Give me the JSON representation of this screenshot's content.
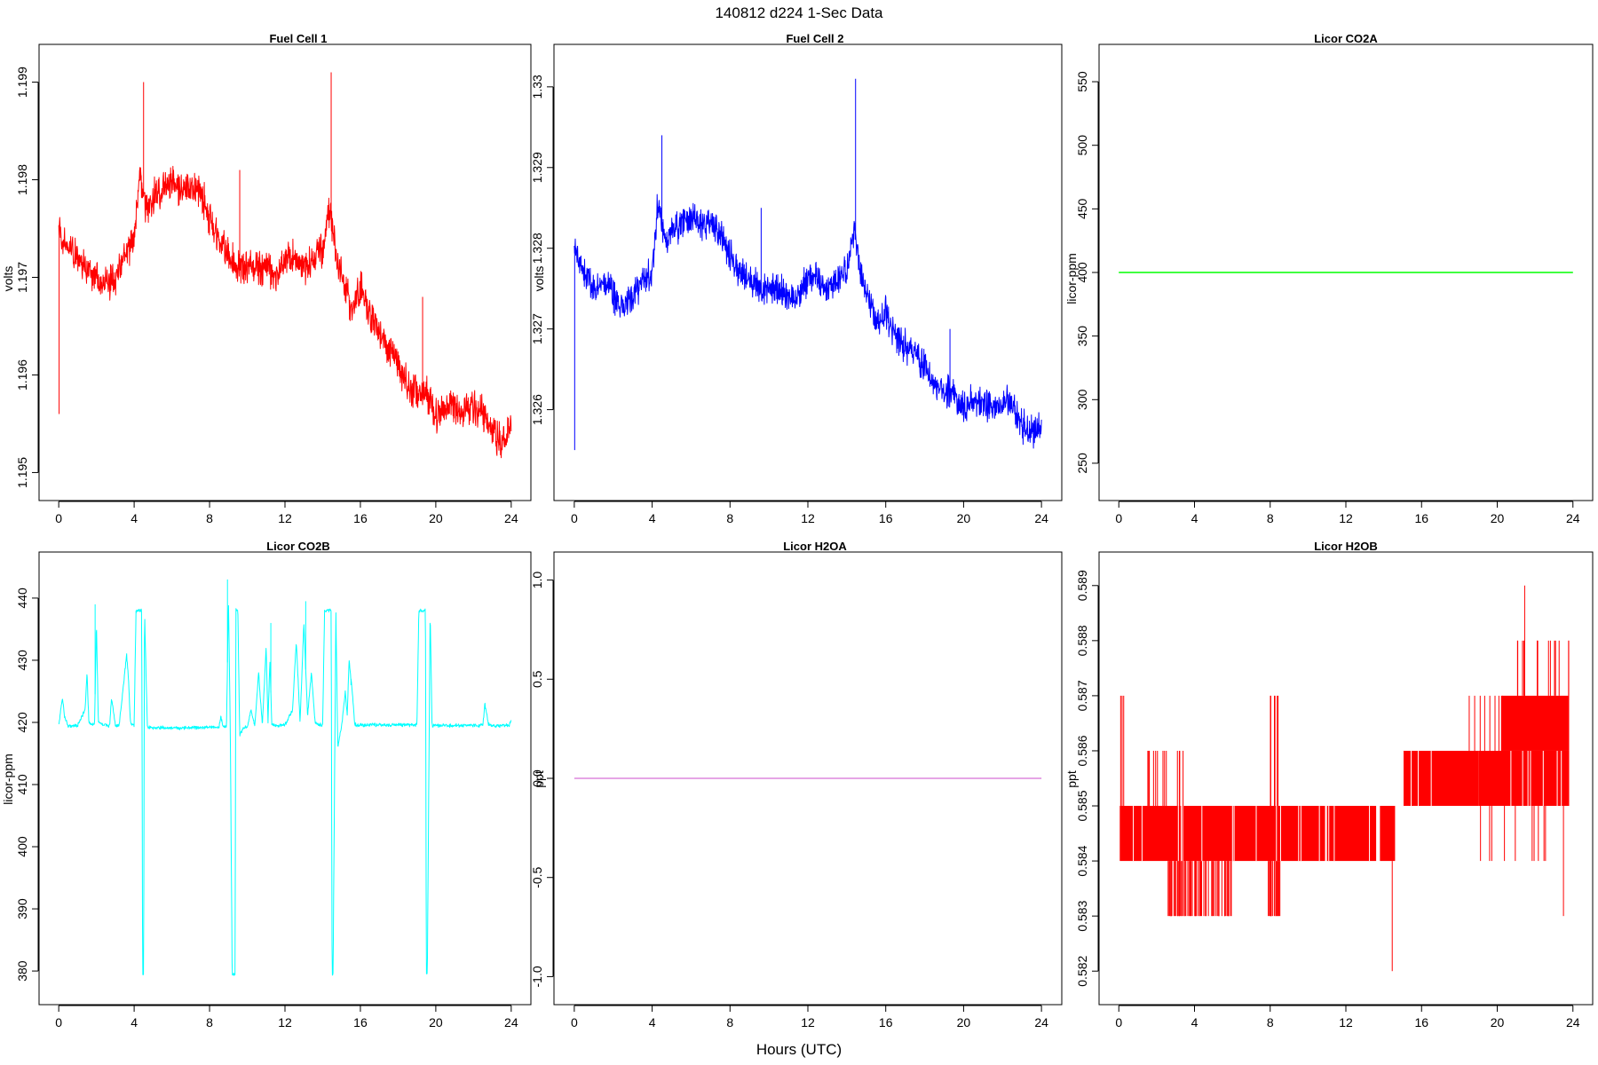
{
  "figure": {
    "title": "140812   d224   1-Sec Data",
    "xlabel": "Hours (UTC)"
  },
  "chart_data": [
    {
      "type": "line",
      "title": "Fuel Cell 1",
      "ylabel": "volts",
      "color": "#ff0000",
      "xlim": [
        0,
        24
      ],
      "ylim": [
        1.1949,
        1.1992
      ],
      "xticks": [
        0,
        4,
        8,
        12,
        16,
        20,
        24
      ],
      "yticks": [
        1.195,
        1.196,
        1.197,
        1.198,
        1.199
      ],
      "series": [
        {
          "x": [
            0,
            0.5,
            1,
            1.5,
            2,
            2.5,
            3,
            3.5,
            4,
            4.3,
            4.6,
            5,
            5.5,
            6,
            6.5,
            7,
            7.5,
            8,
            8.5,
            9,
            9.5,
            10,
            10.5,
            11,
            11.5,
            12,
            12.5,
            13,
            13.5,
            14,
            14.4,
            14.8,
            15,
            15.5,
            16,
            16.5,
            17,
            17.5,
            18,
            18.5,
            19,
            19.5,
            20,
            20.5,
            21,
            21.5,
            22,
            22.5,
            23,
            23.5,
            24
          ],
          "y": [
            1.1975,
            1.1973,
            1.1972,
            1.1971,
            1.197,
            1.1969,
            1.197,
            1.1972,
            1.1974,
            1.1981,
            1.1977,
            1.1978,
            1.1979,
            1.198,
            1.1979,
            1.1979,
            1.1979,
            1.1976,
            1.1974,
            1.1972,
            1.1971,
            1.1971,
            1.1971,
            1.1971,
            1.197,
            1.1972,
            1.1972,
            1.1971,
            1.1972,
            1.1973,
            1.1977,
            1.1971,
            1.197,
            1.1967,
            1.1969,
            1.1966,
            1.1964,
            1.1963,
            1.1961,
            1.1959,
            1.1958,
            1.1958,
            1.1956,
            1.1957,
            1.1957,
            1.1956,
            1.1957,
            1.1956,
            1.1954,
            1.1953,
            1.1955
          ],
          "noise": 0.00016,
          "spikes": [
            {
              "x": 0.02,
              "y": 1.1956
            },
            {
              "x": 4.5,
              "y": 1.199
            },
            {
              "x": 9.6,
              "y": 1.1981
            },
            {
              "x": 14.45,
              "y": 1.1991
            },
            {
              "x": 19.3,
              "y": 1.1968
            }
          ]
        }
      ]
    },
    {
      "type": "line",
      "title": "Fuel Cell 2",
      "ylabel": "volts",
      "color": "#0000ff",
      "xlim": [
        0,
        24
      ],
      "ylim": [
        1.3251,
        1.3303
      ],
      "xticks": [
        0,
        4,
        8,
        12,
        16,
        20,
        24
      ],
      "yticks": [
        1.326,
        1.327,
        1.328,
        1.329,
        1.33
      ],
      "series": [
        {
          "x": [
            0,
            0.5,
            1,
            1.5,
            2,
            2.5,
            3,
            3.5,
            4,
            4.3,
            4.6,
            5,
            5.5,
            6,
            6.5,
            7,
            7.5,
            8,
            8.5,
            9,
            9.5,
            10,
            10.5,
            11,
            11.5,
            12,
            12.5,
            13,
            13.5,
            14,
            14.4,
            14.8,
            15,
            15.5,
            16,
            16.5,
            17,
            17.5,
            18,
            18.5,
            19,
            19.5,
            20,
            20.5,
            21,
            21.5,
            22,
            22.5,
            23,
            23.5,
            24
          ],
          "y": [
            1.328,
            1.3277,
            1.3275,
            1.3276,
            1.3274,
            1.3273,
            1.3274,
            1.3276,
            1.3277,
            1.3286,
            1.3281,
            1.3282,
            1.3283,
            1.3284,
            1.3283,
            1.3283,
            1.3282,
            1.3279,
            1.3277,
            1.3276,
            1.3275,
            1.3275,
            1.3275,
            1.3274,
            1.3274,
            1.3276,
            1.3276,
            1.3275,
            1.3276,
            1.3277,
            1.3282,
            1.3276,
            1.3275,
            1.3271,
            1.3272,
            1.3269,
            1.3268,
            1.3267,
            1.3265,
            1.3263,
            1.3262,
            1.3262,
            1.326,
            1.3261,
            1.3261,
            1.326,
            1.3261,
            1.3261,
            1.3258,
            1.3257,
            1.3258
          ],
          "noise": 0.00018,
          "spikes": [
            {
              "x": 0.02,
              "y": 1.3255
            },
            {
              "x": 4.5,
              "y": 1.3294
            },
            {
              "x": 9.6,
              "y": 1.3285
            },
            {
              "x": 14.45,
              "y": 1.3301
            },
            {
              "x": 19.3,
              "y": 1.327
            }
          ]
        }
      ]
    },
    {
      "type": "line",
      "title": "Licor CO2A",
      "ylabel": "licor-ppm",
      "color": "#00ff00",
      "xlim": [
        0,
        24
      ],
      "ylim": [
        235,
        565
      ],
      "xticks": [
        0,
        4,
        8,
        12,
        16,
        20,
        24
      ],
      "yticks": [
        250,
        300,
        350,
        400,
        450,
        500,
        550
      ],
      "series": [
        {
          "x": [
            0,
            24
          ],
          "y": [
            400,
            400
          ],
          "noise": 0,
          "spikes": []
        }
      ]
    },
    {
      "type": "line",
      "title": "Licor CO2B",
      "ylabel": "licor-ppm",
      "color": "#00ffff",
      "xlim": [
        0,
        24
      ],
      "ylim": [
        377.5,
        444.5
      ],
      "xticks": [
        0,
        4,
        8,
        12,
        16,
        20,
        24
      ],
      "yticks": [
        380,
        390,
        400,
        410,
        420,
        430,
        440
      ],
      "series": [
        {
          "x": [
            0,
            0.2,
            0.3,
            0.5,
            1.0,
            1.4,
            1.5,
            1.6,
            1.9,
            2.0,
            2.1,
            2.5,
            2.7,
            2.8,
            3.0,
            3.2,
            3.4,
            3.6,
            3.7,
            3.8,
            4.0,
            4.1,
            4.15,
            4.4,
            4.45,
            4.5,
            4.55,
            4.7,
            4.8,
            4.9,
            5.0,
            6.0,
            7.0,
            8.0,
            8.5,
            8.6,
            8.7,
            8.9,
            9.0,
            9.1,
            9.2,
            9.35,
            9.4,
            9.5,
            9.6,
            9.8,
            10.0,
            10.2,
            10.4,
            10.6,
            10.8,
            11.0,
            11.1,
            11.2,
            11.3,
            11.6,
            12.0,
            12.4,
            12.6,
            12.8,
            13.0,
            13.2,
            13.4,
            13.6,
            13.8,
            14.0,
            14.1,
            14.2,
            14.45,
            14.5,
            14.55,
            14.7,
            14.8,
            15.0,
            15.2,
            15.3,
            15.4,
            15.6,
            15.7,
            15.9,
            16.0,
            17.0,
            18.0,
            19.0,
            19.1,
            19.2,
            19.45,
            19.5,
            19.55,
            19.7,
            19.8,
            20.0,
            21.0,
            22.0,
            22.5,
            22.6,
            22.8,
            23.0,
            23.5,
            23.9,
            24
          ],
          "y": [
            419.5,
            424,
            421,
            419.4,
            419.5,
            422,
            428,
            420,
            419.6,
            436,
            420,
            419.5,
            419.5,
            424,
            419.6,
            419.5,
            425,
            431,
            427,
            420,
            419.5,
            438,
            438,
            438,
            379.5,
            379.5,
            438,
            419.3,
            419.2,
            419.2,
            419.2,
            419.1,
            419.1,
            419.3,
            419.2,
            421,
            419.4,
            419.3,
            440,
            419,
            379.5,
            379.5,
            438,
            438,
            418,
            419.2,
            419.3,
            422,
            419.4,
            428,
            419.5,
            432,
            420,
            430,
            419.6,
            419.5,
            419.6,
            422,
            433,
            420,
            436,
            421,
            428,
            420,
            419.6,
            419.6,
            438,
            438,
            438,
            379.5,
            379.5,
            438,
            416,
            419.3,
            425,
            421,
            430,
            424,
            419.6,
            419.6,
            419.6,
            419.6,
            419.6,
            419.6,
            438,
            438,
            438,
            379.5,
            379.5,
            438,
            419.5,
            419.5,
            419.5,
            419.5,
            419.5,
            423,
            419.6,
            419.5,
            419.5,
            419.6,
            420.5
          ],
          "noise": 0.25,
          "spikes": [
            {
              "x": 1.93,
              "y": 439
            },
            {
              "x": 8.95,
              "y": 443
            },
            {
              "x": 11.25,
              "y": 436
            },
            {
              "x": 13.1,
              "y": 439.5
            },
            {
              "x": 15.5,
              "y": 426
            }
          ]
        }
      ]
    },
    {
      "type": "line",
      "title": "Licor H2OA",
      "ylabel": "ppt",
      "color": "#dd88dd",
      "xlim": [
        0,
        24
      ],
      "ylim": [
        -1.05,
        1.05
      ],
      "xticks": [
        0,
        4,
        8,
        12,
        16,
        20,
        24
      ],
      "yticks": [
        -1.0,
        -0.5,
        0.0,
        0.5,
        1.0
      ],
      "series": [
        {
          "x": [
            0,
            24
          ],
          "y": [
            0,
            0
          ],
          "noise": 0,
          "spikes": []
        }
      ]
    },
    {
      "type": "line",
      "title": "Licor H2OB",
      "ylabel": "ppt",
      "color": "#ff0000",
      "xlim": [
        0,
        24
      ],
      "ylim": [
        0.58172,
        0.58928
      ],
      "xticks": [
        0,
        4,
        8,
        12,
        16,
        20,
        24
      ],
      "yticks": [
        0.582,
        0.583,
        0.584,
        0.585,
        0.586,
        0.587,
        0.588,
        0.589
      ],
      "series": [
        {
          "x": [
            0,
            15,
            15.2,
            24
          ],
          "y": [
            0.5845,
            0.5845,
            0.5855,
            0.5855
          ],
          "blocks": [
            {
              "x0": 0.05,
              "x1": 10.9,
              "lo": 0.584,
              "hi": 0.585
            },
            {
              "x0": 11.0,
              "x1": 13.6,
              "lo": 0.584,
              "hi": 0.585
            },
            {
              "x0": 13.8,
              "x1": 14.6,
              "lo": 0.584,
              "hi": 0.585
            },
            {
              "x0": 15.0,
              "x1": 19.0,
              "lo": 0.585,
              "hi": 0.586
            },
            {
              "x0": 19.0,
              "x1": 23.8,
              "lo": 0.585,
              "hi": 0.586
            },
            {
              "x0": 20.2,
              "x1": 23.8,
              "lo": 0.586,
              "hi": 0.587
            }
          ],
          "bars": [
            {
              "x0": 2.6,
              "x1": 6.0,
              "lo": 0.583,
              "hi": 0.584,
              "n": 70
            },
            {
              "x0": 7.8,
              "x1": 8.6,
              "lo": 0.583,
              "hi": 0.584,
              "n": 18
            },
            {
              "x0": 0.02,
              "x1": 0.3,
              "lo": 0.585,
              "hi": 0.587,
              "n": 3
            },
            {
              "x0": 1.5,
              "x1": 3.6,
              "lo": 0.585,
              "hi": 0.586,
              "n": 14
            },
            {
              "x0": 8.0,
              "x1": 8.5,
              "lo": 0.585,
              "hi": 0.587,
              "n": 6
            },
            {
              "x0": 21.0,
              "x1": 23.8,
              "lo": 0.587,
              "hi": 0.588,
              "n": 14
            },
            {
              "x0": 18.5,
              "x1": 20.5,
              "lo": 0.586,
              "hi": 0.587,
              "n": 8
            },
            {
              "x0": 19.0,
              "x1": 23.9,
              "lo": 0.584,
              "hi": 0.585,
              "n": 10
            }
          ],
          "spikes": [
            {
              "x": 14.45,
              "lo": 0.582,
              "hi": 0.584
            },
            {
              "x": 21.45,
              "lo": 0.586,
              "hi": 0.589
            },
            {
              "x": 23.5,
              "lo": 0.583,
              "hi": 0.585
            }
          ]
        }
      ]
    }
  ]
}
